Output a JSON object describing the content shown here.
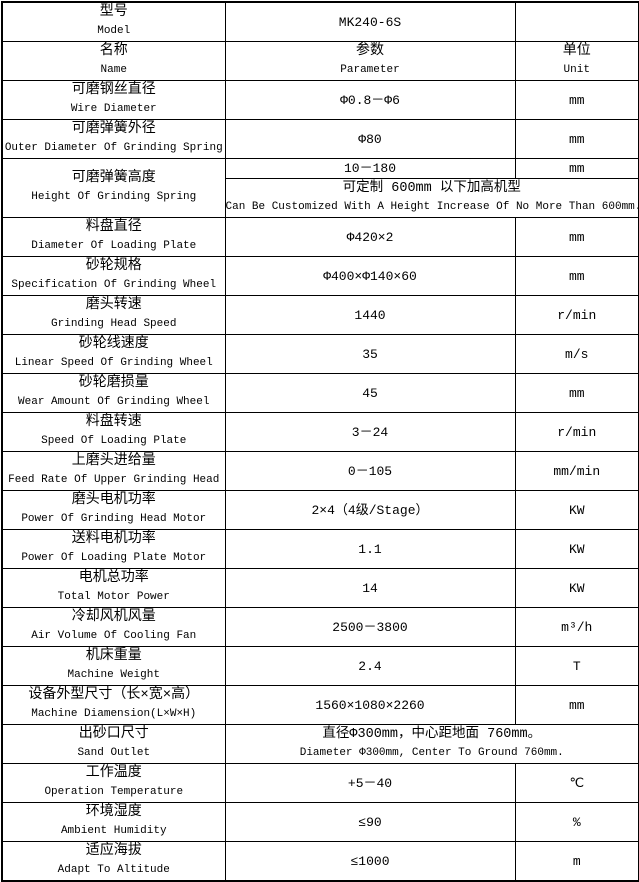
{
  "colors": {
    "border": "#000000",
    "background": "#ffffff",
    "text": "#000000"
  },
  "table": {
    "model": {
      "zh": "型号",
      "en": "Model",
      "value": "MK240-6S",
      "unit": ""
    },
    "header": {
      "name_zh": "名称",
      "name_en": "Name",
      "param_zh": "参数",
      "param_en": "Parameter",
      "unit_zh": "单位",
      "unit_en": "Unit"
    },
    "rows": [
      {
        "type": "normal",
        "zh": "可磨钢丝直径",
        "en": "Wire Diameter",
        "value": "Φ0.8－Φ6",
        "unit": "mm"
      },
      {
        "type": "normal",
        "zh": "可磨弹簧外径",
        "en": "Outer Diameter Of Grinding Spring",
        "value": "Φ80",
        "unit": "mm"
      },
      {
        "type": "split",
        "zh": "可磨弹簧高度",
        "en": "Height Of Grinding Spring",
        "value": "10－180",
        "unit": "mm",
        "note_zh": "可定制 600mm 以下加高机型",
        "note_en": "Can Be Customized With A Height Increase Of No More Than 600mm."
      },
      {
        "type": "normal",
        "zh": "料盘直径",
        "en": "Diameter Of Loading Plate",
        "value": "Φ420×2",
        "unit": "mm"
      },
      {
        "type": "normal",
        "zh": "砂轮规格",
        "en": "Specification Of Grinding Wheel",
        "value": "Φ400×Φ140×60",
        "unit": "mm"
      },
      {
        "type": "normal",
        "zh": "磨头转速",
        "en": "Grinding Head Speed",
        "value": "1440",
        "unit": "r/min"
      },
      {
        "type": "normal",
        "zh": "砂轮线速度",
        "en": "Linear Speed Of Grinding Wheel",
        "value": "35",
        "unit": "m/s"
      },
      {
        "type": "normal",
        "zh": "砂轮磨损量",
        "en": "Wear Amount Of Grinding Wheel",
        "value": "45",
        "unit": "mm"
      },
      {
        "type": "normal",
        "zh": "料盘转速",
        "en": "Speed Of Loading Plate",
        "value": "3－24",
        "unit": "r/min"
      },
      {
        "type": "normal",
        "zh": "上磨头进给量",
        "en": "Feed Rate Of Upper Grinding Head",
        "value": "0－105",
        "unit": "mm/min"
      },
      {
        "type": "normal",
        "zh": "磨头电机功率",
        "en": "Power Of Grinding Head Motor",
        "value": "2×4（4级/Stage）",
        "unit": "KW"
      },
      {
        "type": "normal",
        "zh": "送料电机功率",
        "en": "Power Of Loading Plate Motor",
        "value": "1.1",
        "unit": "KW"
      },
      {
        "type": "normal",
        "zh": "电机总功率",
        "en": "Total Motor Power",
        "value": "14",
        "unit": "KW"
      },
      {
        "type": "normal",
        "zh": "冷却风机风量",
        "en": "Air Volume Of Cooling Fan",
        "value": "2500－3800",
        "unit": "m³/h"
      },
      {
        "type": "normal",
        "zh": "机床重量",
        "en": "Machine Weight",
        "value": "2.4",
        "unit": "T"
      },
      {
        "type": "normal",
        "zh": "设备外型尺寸（长×宽×高）",
        "en": "Machine Diamension(L×W×H)",
        "value": "1560×1080×2260",
        "unit": "mm"
      },
      {
        "type": "span",
        "zh": "出砂口尺寸",
        "en": "Sand Outlet",
        "note_zh": "直径Φ300mm，中心距地面 760mm。",
        "note_en": "Diameter Φ300mm, Center To Ground 760mm."
      },
      {
        "type": "normal",
        "zh": "工作温度",
        "en": "Operation Temperature",
        "value": "+5－40",
        "unit": "℃"
      },
      {
        "type": "normal",
        "zh": "环境湿度",
        "en": "Ambient Humidity",
        "value": "≤90",
        "unit": "%"
      },
      {
        "type": "normal",
        "zh": "适应海拔",
        "en": "Adapt To Altitude",
        "value": "≤1000",
        "unit": "m"
      }
    ]
  }
}
